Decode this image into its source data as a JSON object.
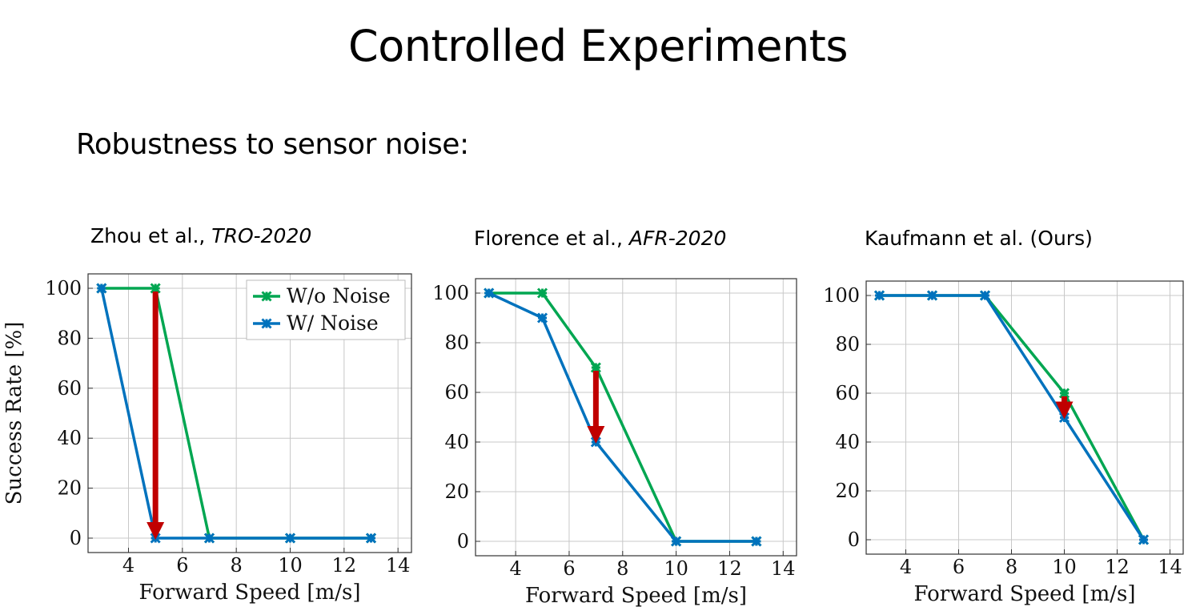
{
  "slide": {
    "title": "Controlled Experiments",
    "subtitle": "Robustness to sensor noise:"
  },
  "colors": {
    "no_noise": "#00a651",
    "noise": "#0072bd",
    "arrow": "#c00000",
    "grid": "#c8c8c8"
  },
  "chart_data": [
    {
      "type": "line",
      "title_main": "Zhou et al., ",
      "title_venue": "TRO-2020",
      "xlabel": "Forward Speed [m/s]",
      "ylabel": "Success Rate [%]",
      "xlim": [
        2.5,
        14.5
      ],
      "ylim": [
        0,
        100
      ],
      "xticks": [
        4,
        6,
        8,
        10,
        12,
        14
      ],
      "yticks": [
        0,
        20,
        40,
        60,
        80,
        100
      ],
      "grid": true,
      "legend": {
        "position": "top-right",
        "entries": [
          "W/o Noise",
          "W/ Noise"
        ]
      },
      "series": [
        {
          "name": "W/o Noise",
          "x": [
            3,
            5,
            7,
            10,
            13
          ],
          "y": [
            100,
            100,
            0,
            0,
            0
          ]
        },
        {
          "name": "W/ Noise",
          "x": [
            3,
            5,
            7,
            10,
            13
          ],
          "y": [
            100,
            0,
            0,
            0,
            0
          ]
        }
      ],
      "arrow": {
        "x": 5,
        "from": 100,
        "to": 0
      }
    },
    {
      "type": "line",
      "title_main": "Florence et al., ",
      "title_venue": "AFR-2020",
      "xlabel": "Forward Speed [m/s]",
      "ylabel": "",
      "xlim": [
        2.5,
        14.5
      ],
      "ylim": [
        0,
        100
      ],
      "xticks": [
        4,
        6,
        8,
        10,
        12,
        14
      ],
      "yticks": [
        0,
        20,
        40,
        60,
        80,
        100
      ],
      "grid": true,
      "series": [
        {
          "name": "W/o Noise",
          "x": [
            3,
            5,
            7,
            10,
            13
          ],
          "y": [
            100,
            100,
            70,
            0,
            0
          ]
        },
        {
          "name": "W/ Noise",
          "x": [
            3,
            5,
            7,
            10,
            13
          ],
          "y": [
            100,
            90,
            40,
            0,
            0
          ]
        }
      ],
      "arrow": {
        "x": 7,
        "from": 70,
        "to": 40
      }
    },
    {
      "type": "line",
      "title_main": "Kaufmann et al. (Ours)",
      "title_venue": "",
      "xlabel": "Forward Speed [m/s]",
      "ylabel": "",
      "xlim": [
        2.5,
        14.5
      ],
      "ylim": [
        0,
        100
      ],
      "xticks": [
        4,
        6,
        8,
        10,
        12,
        14
      ],
      "yticks": [
        0,
        20,
        40,
        60,
        80,
        100
      ],
      "grid": true,
      "series": [
        {
          "name": "W/o Noise",
          "x": [
            3,
            5,
            7,
            10,
            13
          ],
          "y": [
            100,
            100,
            100,
            60,
            0
          ]
        },
        {
          "name": "W/ Noise",
          "x": [
            3,
            5,
            7,
            10,
            13
          ],
          "y": [
            100,
            100,
            100,
            50,
            0
          ]
        }
      ],
      "arrow": {
        "x": 10,
        "from": 60,
        "to": 50
      }
    }
  ]
}
